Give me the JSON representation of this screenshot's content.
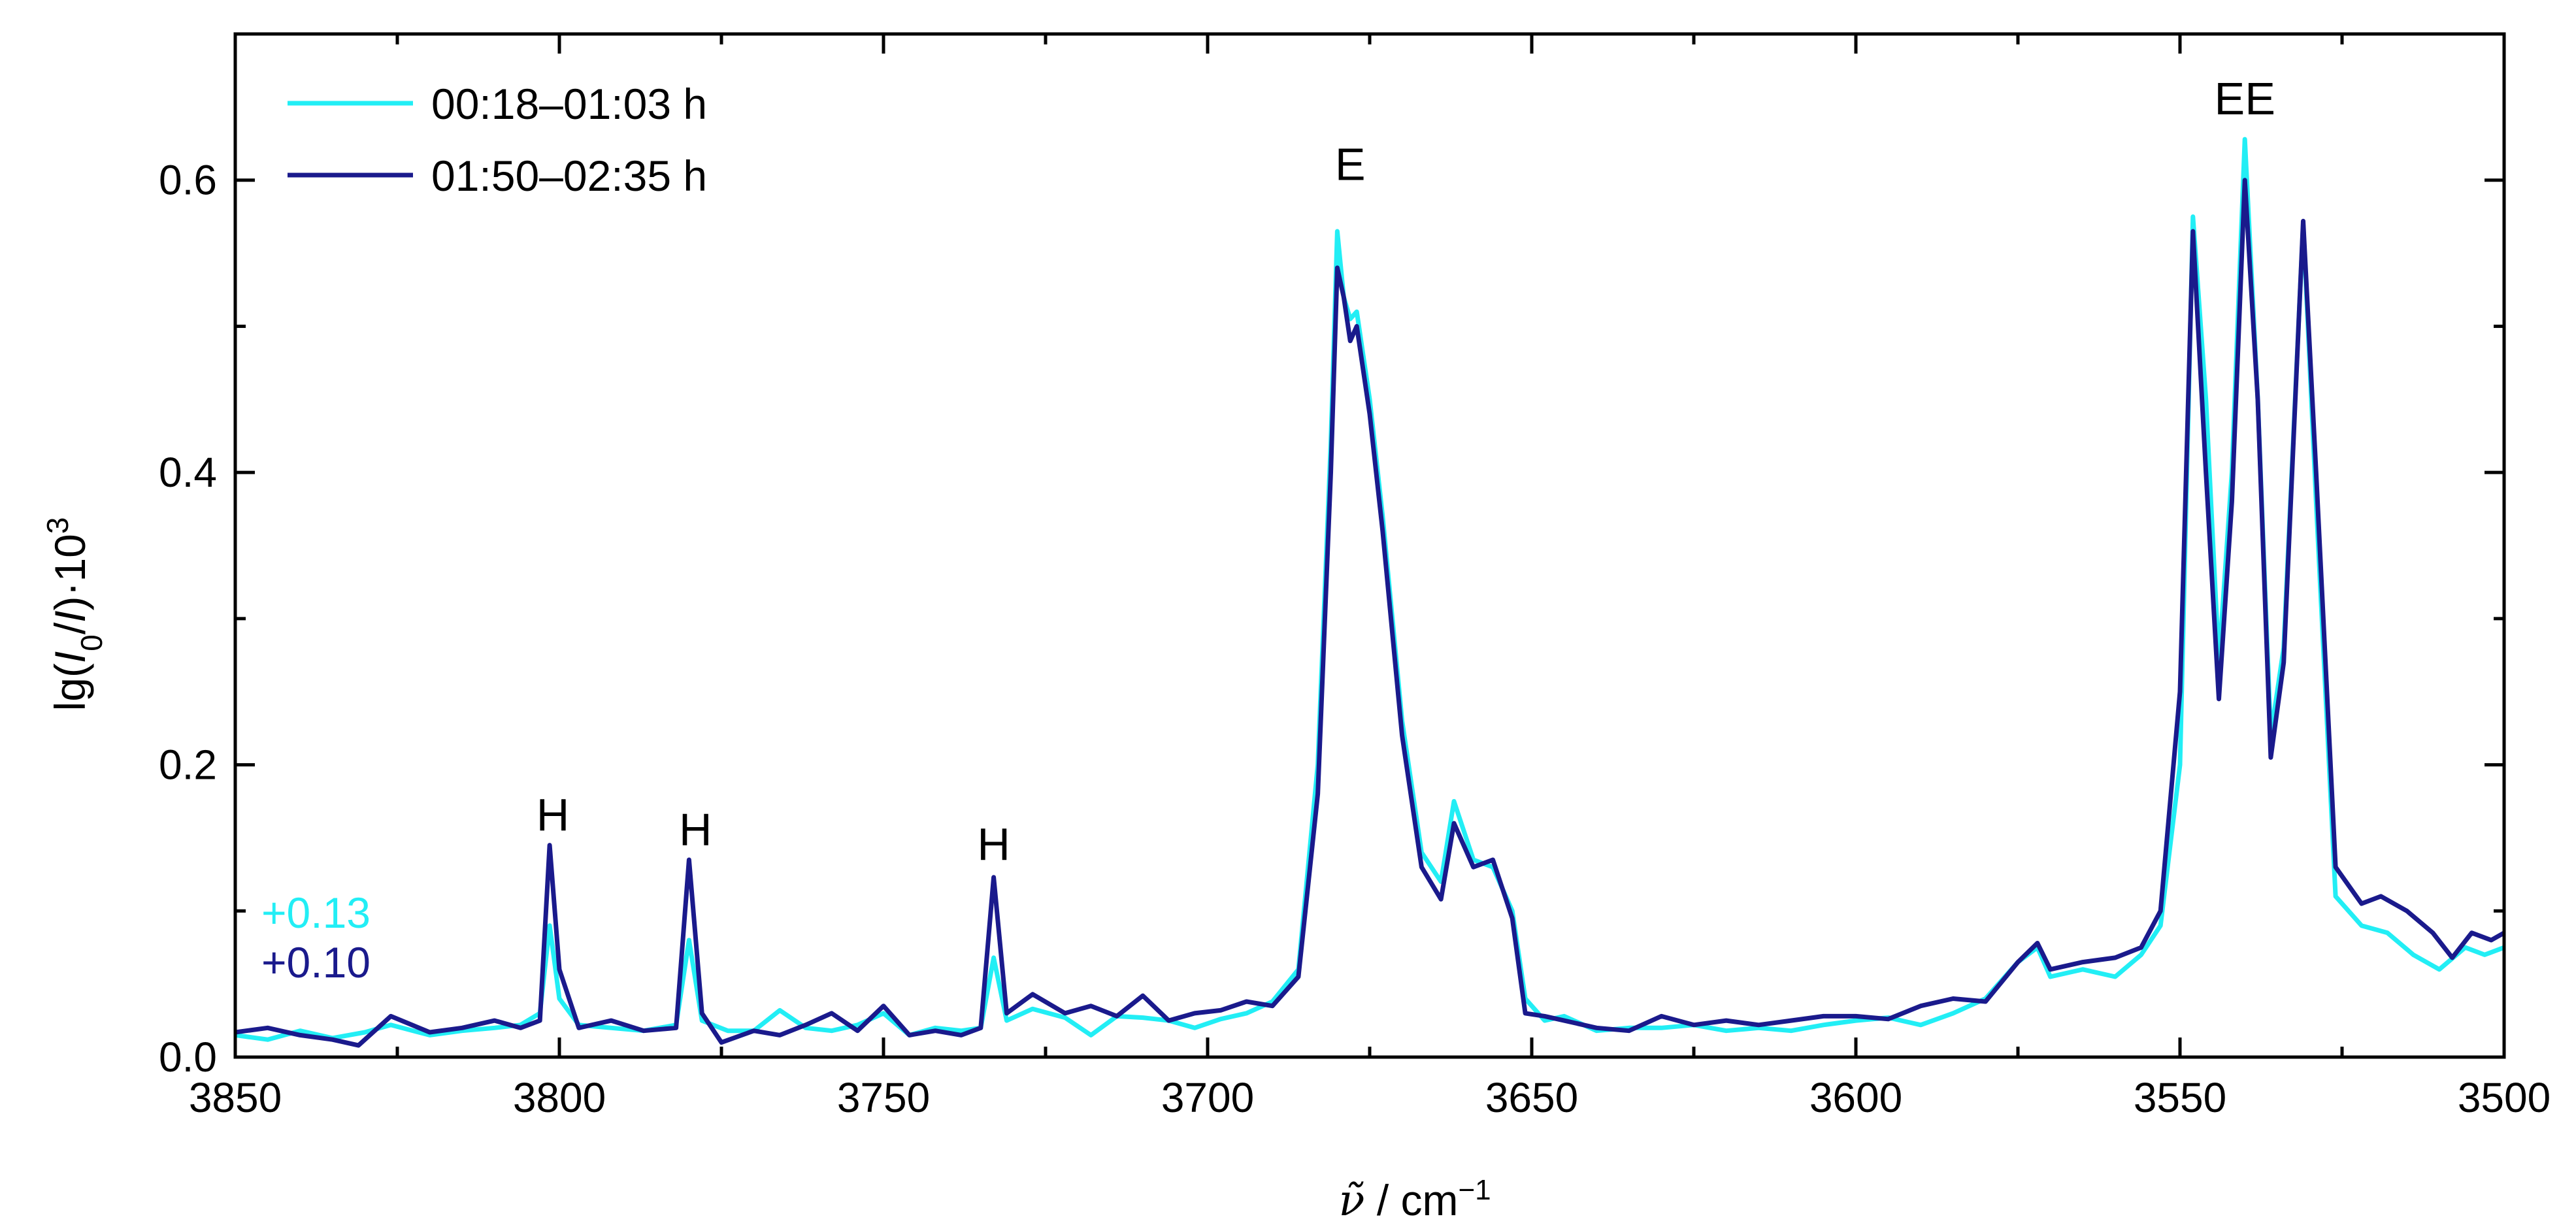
{
  "chart_data": {
    "type": "line",
    "xlabel": "ν̃ / cm⁻¹",
    "xlabel_symbol": "ν̃",
    "xlabel_unit": "/ cm",
    "xlabel_exp": "−1",
    "ylabel": "lg(I0/I)·10³",
    "xlim": [
      3850,
      3500
    ],
    "ylim": [
      0.0,
      0.7
    ],
    "x_reversed": true,
    "x_ticks": [
      3850,
      3800,
      3750,
      3700,
      3650,
      3600,
      3550,
      3500
    ],
    "y_ticks": [
      0.0,
      0.2,
      0.4,
      0.6
    ],
    "x_tick_labels": [
      "3850",
      "3800",
      "3750",
      "3700",
      "3650",
      "3600",
      "3550",
      "3500"
    ],
    "y_tick_labels": [
      "0.0",
      "0.2",
      "0.4",
      "0.6"
    ],
    "legend_position": "top-left",
    "grid": false,
    "annotations": [
      {
        "text": "H",
        "x": 3801,
        "y": 0.155
      },
      {
        "text": "H",
        "x": 3779,
        "y": 0.145
      },
      {
        "text": "H",
        "x": 3733,
        "y": 0.135
      },
      {
        "text": "E",
        "x": 3678,
        "y": 0.6
      },
      {
        "text": "EE",
        "x": 3540,
        "y": 0.645
      }
    ],
    "offsets": [
      {
        "text": "+0.13",
        "color": "#22EEF5"
      },
      {
        "text": "+0.10",
        "color": "#1A1A8C"
      }
    ],
    "series": [
      {
        "name": "00:18–01:03 h",
        "color": "#22EEF5",
        "points": [
          [
            3850,
            0.015
          ],
          [
            3845,
            0.012
          ],
          [
            3840,
            0.018
          ],
          [
            3835,
            0.013
          ],
          [
            3830,
            0.017
          ],
          [
            3826,
            0.022
          ],
          [
            3820,
            0.015
          ],
          [
            3815,
            0.018
          ],
          [
            3810,
            0.02
          ],
          [
            3806,
            0.022
          ],
          [
            3803,
            0.03
          ],
          [
            3801.5,
            0.09
          ],
          [
            3800,
            0.04
          ],
          [
            3797,
            0.022
          ],
          [
            3792,
            0.02
          ],
          [
            3787,
            0.018
          ],
          [
            3782,
            0.022
          ],
          [
            3780,
            0.08
          ],
          [
            3778,
            0.025
          ],
          [
            3774,
            0.018
          ],
          [
            3770,
            0.018
          ],
          [
            3766,
            0.032
          ],
          [
            3762,
            0.02
          ],
          [
            3758,
            0.018
          ],
          [
            3754,
            0.022
          ],
          [
            3750,
            0.03
          ],
          [
            3746,
            0.015
          ],
          [
            3742,
            0.02
          ],
          [
            3738,
            0.018
          ],
          [
            3735,
            0.02
          ],
          [
            3733,
            0.068
          ],
          [
            3731,
            0.025
          ],
          [
            3727,
            0.033
          ],
          [
            3722,
            0.027
          ],
          [
            3718,
            0.015
          ],
          [
            3714,
            0.028
          ],
          [
            3710,
            0.027
          ],
          [
            3706,
            0.025
          ],
          [
            3702,
            0.02
          ],
          [
            3698,
            0.026
          ],
          [
            3694,
            0.03
          ],
          [
            3690,
            0.038
          ],
          [
            3686,
            0.06
          ],
          [
            3683,
            0.2
          ],
          [
            3681,
            0.42
          ],
          [
            3680,
            0.565
          ],
          [
            3679,
            0.52
          ],
          [
            3678,
            0.505
          ],
          [
            3677,
            0.51
          ],
          [
            3675,
            0.45
          ],
          [
            3673,
            0.37
          ],
          [
            3670,
            0.23
          ],
          [
            3667,
            0.14
          ],
          [
            3664,
            0.12
          ],
          [
            3662,
            0.175
          ],
          [
            3659,
            0.135
          ],
          [
            3656,
            0.13
          ],
          [
            3653,
            0.1
          ],
          [
            3651,
            0.04
          ],
          [
            3648,
            0.025
          ],
          [
            3645,
            0.028
          ],
          [
            3640,
            0.018
          ],
          [
            3635,
            0.02
          ],
          [
            3630,
            0.02
          ],
          [
            3625,
            0.022
          ],
          [
            3620,
            0.018
          ],
          [
            3615,
            0.02
          ],
          [
            3610,
            0.018
          ],
          [
            3605,
            0.022
          ],
          [
            3600,
            0.025
          ],
          [
            3595,
            0.027
          ],
          [
            3590,
            0.022
          ],
          [
            3585,
            0.03
          ],
          [
            3580,
            0.04
          ],
          [
            3575,
            0.065
          ],
          [
            3572,
            0.075
          ],
          [
            3570,
            0.055
          ],
          [
            3565,
            0.06
          ],
          [
            3560,
            0.055
          ],
          [
            3556,
            0.07
          ],
          [
            3553,
            0.09
          ],
          [
            3550,
            0.2
          ],
          [
            3548,
            0.575
          ],
          [
            3546,
            0.45
          ],
          [
            3544,
            0.27
          ],
          [
            3542,
            0.4
          ],
          [
            3540,
            0.628
          ],
          [
            3538,
            0.45
          ],
          [
            3536,
            0.22
          ],
          [
            3534,
            0.28
          ],
          [
            3531,
            0.57
          ],
          [
            3529,
            0.38
          ],
          [
            3526,
            0.11
          ],
          [
            3522,
            0.09
          ],
          [
            3518,
            0.085
          ],
          [
            3514,
            0.07
          ],
          [
            3510,
            0.06
          ],
          [
            3506,
            0.075
          ],
          [
            3503,
            0.07
          ],
          [
            3500,
            0.075
          ]
        ]
      },
      {
        "name": "01:50–02:35 h",
        "color": "#1A1A8C",
        "points": [
          [
            3850,
            0.017
          ],
          [
            3845,
            0.02
          ],
          [
            3840,
            0.015
          ],
          [
            3835,
            0.012
          ],
          [
            3831,
            0.008
          ],
          [
            3826,
            0.028
          ],
          [
            3820,
            0.017
          ],
          [
            3815,
            0.02
          ],
          [
            3810,
            0.025
          ],
          [
            3806,
            0.02
          ],
          [
            3803,
            0.025
          ],
          [
            3801.5,
            0.145
          ],
          [
            3800,
            0.06
          ],
          [
            3797,
            0.02
          ],
          [
            3792,
            0.025
          ],
          [
            3787,
            0.018
          ],
          [
            3782,
            0.02
          ],
          [
            3780,
            0.135
          ],
          [
            3778,
            0.03
          ],
          [
            3775,
            0.01
          ],
          [
            3770,
            0.018
          ],
          [
            3766,
            0.015
          ],
          [
            3762,
            0.022
          ],
          [
            3758,
            0.03
          ],
          [
            3754,
            0.018
          ],
          [
            3750,
            0.035
          ],
          [
            3746,
            0.015
          ],
          [
            3742,
            0.018
          ],
          [
            3738,
            0.015
          ],
          [
            3735,
            0.02
          ],
          [
            3733,
            0.123
          ],
          [
            3731,
            0.03
          ],
          [
            3727,
            0.043
          ],
          [
            3722,
            0.03
          ],
          [
            3718,
            0.035
          ],
          [
            3714,
            0.028
          ],
          [
            3710,
            0.042
          ],
          [
            3706,
            0.025
          ],
          [
            3702,
            0.03
          ],
          [
            3698,
            0.032
          ],
          [
            3694,
            0.038
          ],
          [
            3690,
            0.035
          ],
          [
            3686,
            0.055
          ],
          [
            3683,
            0.18
          ],
          [
            3681,
            0.4
          ],
          [
            3680,
            0.54
          ],
          [
            3679,
            0.52
          ],
          [
            3678,
            0.49
          ],
          [
            3677,
            0.5
          ],
          [
            3675,
            0.44
          ],
          [
            3673,
            0.36
          ],
          [
            3670,
            0.22
          ],
          [
            3667,
            0.13
          ],
          [
            3664,
            0.108
          ],
          [
            3662,
            0.16
          ],
          [
            3659,
            0.13
          ],
          [
            3656,
            0.135
          ],
          [
            3653,
            0.095
          ],
          [
            3651,
            0.03
          ],
          [
            3648,
            0.028
          ],
          [
            3645,
            0.025
          ],
          [
            3640,
            0.02
          ],
          [
            3635,
            0.018
          ],
          [
            3630,
            0.028
          ],
          [
            3625,
            0.022
          ],
          [
            3620,
            0.025
          ],
          [
            3615,
            0.022
          ],
          [
            3610,
            0.025
          ],
          [
            3605,
            0.028
          ],
          [
            3600,
            0.028
          ],
          [
            3595,
            0.026
          ],
          [
            3590,
            0.035
          ],
          [
            3585,
            0.04
          ],
          [
            3580,
            0.038
          ],
          [
            3575,
            0.065
          ],
          [
            3572,
            0.078
          ],
          [
            3570,
            0.06
          ],
          [
            3565,
            0.065
          ],
          [
            3560,
            0.068
          ],
          [
            3556,
            0.075
          ],
          [
            3553,
            0.1
          ],
          [
            3550,
            0.25
          ],
          [
            3548,
            0.565
          ],
          [
            3546,
            0.4
          ],
          [
            3544,
            0.245
          ],
          [
            3542,
            0.38
          ],
          [
            3540,
            0.6
          ],
          [
            3538,
            0.45
          ],
          [
            3536,
            0.205
          ],
          [
            3534,
            0.27
          ],
          [
            3531,
            0.572
          ],
          [
            3529,
            0.4
          ],
          [
            3526,
            0.13
          ],
          [
            3522,
            0.105
          ],
          [
            3519,
            0.11
          ],
          [
            3515,
            0.1
          ],
          [
            3511,
            0.085
          ],
          [
            3508,
            0.068
          ],
          [
            3505,
            0.085
          ],
          [
            3502,
            0.08
          ],
          [
            3500,
            0.085
          ]
        ]
      }
    ]
  }
}
